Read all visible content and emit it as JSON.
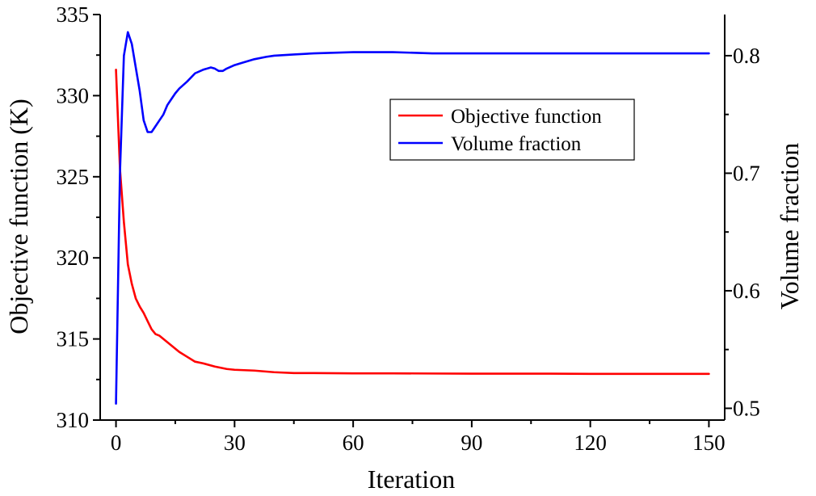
{
  "chart_data": {
    "type": "line",
    "title": "",
    "xlabel": "Iteration",
    "ylabel": "Objective function (K)",
    "y2label": "Volume fraction",
    "xlim": [
      -4,
      154
    ],
    "ylim": [
      310,
      335
    ],
    "y2lim": [
      0.49,
      0.835
    ],
    "x_ticks": [
      0,
      30,
      60,
      90,
      120,
      150
    ],
    "y_ticks": [
      310,
      315,
      320,
      325,
      330,
      335
    ],
    "y2_ticks": [
      "0.5",
      "0.6",
      "0.7",
      "0.8"
    ],
    "grid": false,
    "legend_position": "upper-right",
    "series": [
      {
        "name": "Objective function",
        "color": "#ff0000",
        "axis": "left",
        "x": [
          0,
          1,
          2,
          3,
          4,
          5,
          6,
          7,
          8,
          9,
          10,
          11,
          12,
          14,
          16,
          18,
          20,
          22,
          25,
          28,
          30,
          35,
          40,
          45,
          50,
          60,
          70,
          80,
          90,
          100,
          110,
          120,
          130,
          140,
          150
        ],
        "values": [
          331.6,
          325.5,
          322.2,
          319.6,
          318.4,
          317.5,
          317.0,
          316.6,
          316.1,
          315.6,
          315.3,
          315.2,
          315.0,
          314.6,
          314.2,
          313.9,
          313.6,
          313.5,
          313.3,
          313.15,
          313.1,
          313.05,
          312.95,
          312.9,
          312.9,
          312.88,
          312.88,
          312.87,
          312.86,
          312.86,
          312.86,
          312.85,
          312.85,
          312.85,
          312.85
        ]
      },
      {
        "name": "Volume fraction",
        "color": "#0000ff",
        "axis": "right",
        "x": [
          0,
          1,
          2,
          3,
          4,
          5,
          6,
          7,
          8,
          9,
          10,
          11,
          12,
          13,
          14,
          15,
          16,
          18,
          20,
          22,
          24,
          25,
          26,
          27,
          28,
          30,
          32,
          35,
          38,
          40,
          45,
          50,
          60,
          70,
          80,
          90,
          100,
          110,
          120,
          130,
          140,
          150
        ],
        "values": [
          0.504,
          0.7,
          0.8,
          0.82,
          0.81,
          0.79,
          0.77,
          0.745,
          0.735,
          0.735,
          0.74,
          0.745,
          0.75,
          0.758,
          0.763,
          0.768,
          0.772,
          0.778,
          0.785,
          0.788,
          0.79,
          0.789,
          0.787,
          0.787,
          0.789,
          0.792,
          0.794,
          0.797,
          0.799,
          0.8,
          0.801,
          0.802,
          0.803,
          0.803,
          0.802,
          0.802,
          0.802,
          0.802,
          0.802,
          0.802,
          0.802,
          0.802
        ]
      }
    ]
  }
}
